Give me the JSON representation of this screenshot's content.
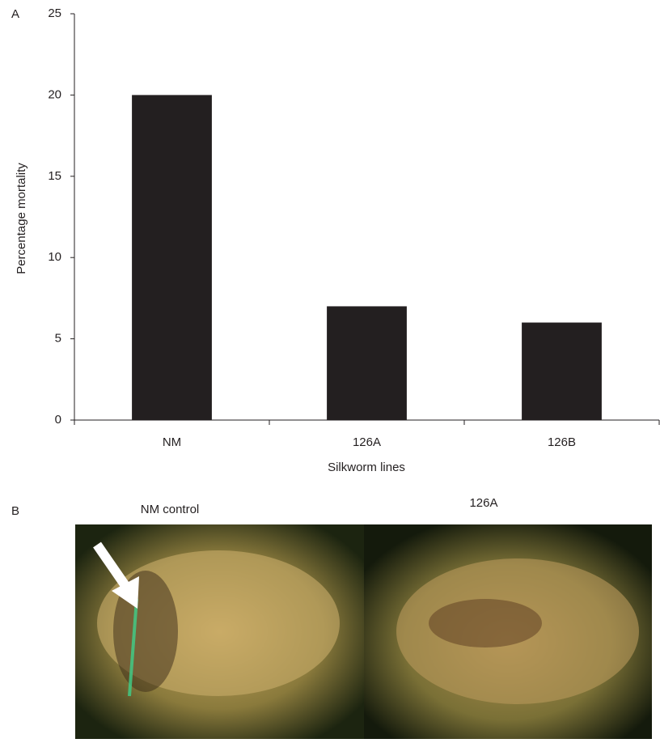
{
  "chart_data": {
    "type": "bar",
    "panel_label": "A",
    "x_label": "Silkworm lines",
    "y_label": "Percentage mortality",
    "categories": [
      "NM",
      "126A",
      "126B"
    ],
    "values": [
      20,
      7,
      6
    ],
    "color": "#231f20",
    "ylim": [
      0,
      25
    ],
    "yticks": [
      0,
      5,
      10,
      15,
      20,
      25
    ],
    "grid": false
  },
  "photo_panel": {
    "panel_label": "B",
    "labels": [
      "NM control",
      "126A"
    ]
  }
}
